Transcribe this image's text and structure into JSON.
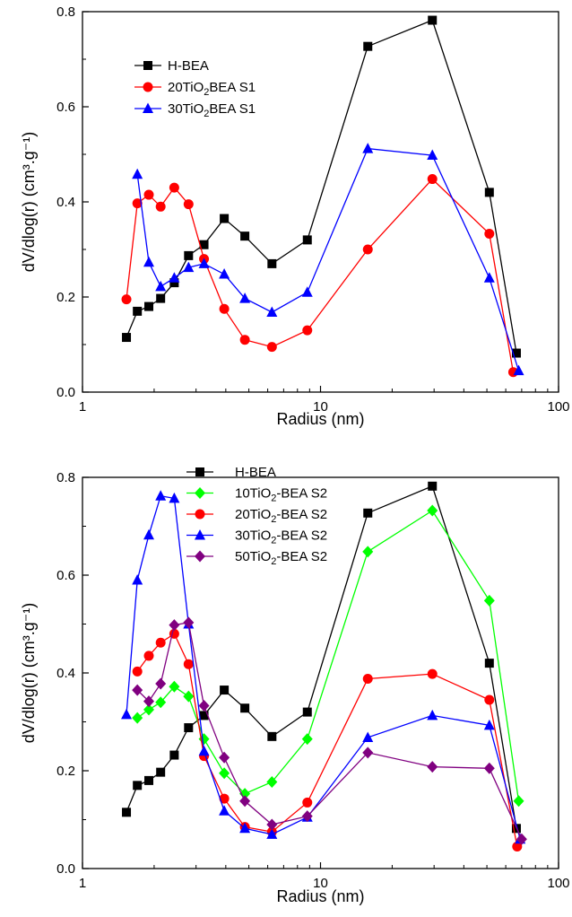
{
  "chart_data": [
    {
      "type": "line",
      "xscale": "log",
      "xlabel": "Radius (nm)",
      "ylabel": "dV/dlog(r) (cm³.g⁻¹)",
      "xlim": [
        1,
        100
      ],
      "ylim": [
        0,
        0.8
      ],
      "xticks": [
        1,
        10,
        100
      ],
      "xtick_labels": [
        "1",
        "10",
        "100"
      ],
      "yticks": [
        0.0,
        0.2,
        0.4,
        0.6,
        0.8
      ],
      "ytick_labels": [
        "0.0",
        "0.2",
        "0.4",
        "0.6",
        "0.8"
      ],
      "legend_position": "top-left",
      "series": [
        {
          "name": "H-BEA",
          "color": "#000000",
          "marker": "square",
          "x": [
            1.53,
            1.7,
            1.9,
            2.13,
            2.43,
            2.79,
            3.24,
            3.94,
            4.81,
            6.25,
            8.8,
            15.8,
            29.5,
            51.2,
            66.5
          ],
          "y": [
            0.115,
            0.17,
            0.18,
            0.197,
            0.23,
            0.287,
            0.31,
            0.365,
            0.328,
            0.27,
            0.32,
            0.727,
            0.782,
            0.42,
            0.082
          ]
        },
        {
          "name": "20TiO₂BEA S1",
          "color": "#ff0000",
          "marker": "circle",
          "x": [
            1.53,
            1.7,
            1.9,
            2.13,
            2.43,
            2.79,
            3.24,
            3.94,
            4.81,
            6.25,
            8.8,
            15.8,
            29.5,
            51.2,
            64.5
          ],
          "y": [
            0.195,
            0.397,
            0.415,
            0.39,
            0.43,
            0.395,
            0.28,
            0.175,
            0.11,
            0.095,
            0.13,
            0.3,
            0.448,
            0.333,
            0.042
          ]
        },
        {
          "name": "30TiO₂BEA S1",
          "color": "#0000ff",
          "marker": "triangle",
          "x": [
            1.7,
            1.9,
            2.13,
            2.43,
            2.79,
            3.24,
            3.94,
            4.81,
            6.25,
            8.8,
            15.8,
            29.5,
            51.2,
            68.0
          ],
          "y": [
            0.458,
            0.273,
            0.222,
            0.24,
            0.262,
            0.27,
            0.248,
            0.197,
            0.168,
            0.21,
            0.512,
            0.498,
            0.24,
            0.045
          ]
        }
      ]
    },
    {
      "type": "line",
      "xscale": "log",
      "xlabel": "Radius (nm)",
      "ylabel": "dV/dlog(r) (cm³.g⁻¹)",
      "xlim": [
        1,
        100
      ],
      "ylim": [
        0,
        0.8
      ],
      "xticks": [
        1,
        10,
        100
      ],
      "xtick_labels": [
        "1",
        "10",
        "100"
      ],
      "yticks": [
        0.0,
        0.2,
        0.4,
        0.6,
        0.8
      ],
      "ytick_labels": [
        "0.0",
        "0.2",
        "0.4",
        "0.6",
        "0.8"
      ],
      "legend_position": "top-left",
      "series": [
        {
          "name": "H-BEA",
          "color": "#000000",
          "marker": "square",
          "x": [
            1.53,
            1.7,
            1.9,
            2.13,
            2.43,
            2.79,
            3.24,
            3.94,
            4.81,
            6.25,
            8.8,
            15.8,
            29.5,
            51.2,
            66.5
          ],
          "y": [
            0.115,
            0.17,
            0.18,
            0.197,
            0.232,
            0.288,
            0.313,
            0.365,
            0.328,
            0.27,
            0.32,
            0.727,
            0.782,
            0.42,
            0.082
          ]
        },
        {
          "name": "10TiO₂-BEA S2",
          "color": "#00ff00",
          "marker": "diamond",
          "x": [
            1.7,
            1.9,
            2.13,
            2.43,
            2.79,
            3.24,
            3.94,
            4.81,
            6.25,
            8.8,
            15.8,
            29.5,
            51.2,
            68.0
          ],
          "y": [
            0.308,
            0.325,
            0.34,
            0.372,
            0.352,
            0.265,
            0.195,
            0.153,
            0.177,
            0.265,
            0.648,
            0.732,
            0.548,
            0.138
          ]
        },
        {
          "name": "20TiO₂-BEA S2",
          "color": "#ff0000",
          "marker": "circle",
          "x": [
            1.7,
            1.9,
            2.13,
            2.43,
            2.79,
            3.24,
            3.94,
            4.81,
            6.25,
            8.8,
            15.8,
            29.5,
            51.2,
            67.0
          ],
          "y": [
            0.403,
            0.435,
            0.462,
            0.48,
            0.418,
            0.23,
            0.143,
            0.085,
            0.075,
            0.135,
            0.388,
            0.398,
            0.345,
            0.045
          ]
        },
        {
          "name": "30TiO₂-BEA S2",
          "color": "#0000ff",
          "marker": "triangle",
          "x": [
            1.53,
            1.7,
            1.9,
            2.13,
            2.43,
            2.79,
            3.24,
            3.94,
            4.81,
            6.25,
            8.8,
            15.8,
            29.5,
            51.2,
            69.0
          ],
          "y": [
            0.315,
            0.59,
            0.682,
            0.762,
            0.757,
            0.5,
            0.24,
            0.118,
            0.082,
            0.07,
            0.105,
            0.268,
            0.313,
            0.293,
            0.06
          ]
        },
        {
          "name": "50TiO₂-BEA S2",
          "color": "#800080",
          "marker": "diamond",
          "x": [
            1.7,
            1.9,
            2.13,
            2.43,
            2.79,
            3.24,
            3.94,
            4.81,
            6.25,
            8.8,
            15.8,
            29.5,
            51.2,
            70.0
          ],
          "y": [
            0.365,
            0.342,
            0.378,
            0.498,
            0.503,
            0.333,
            0.227,
            0.138,
            0.09,
            0.107,
            0.237,
            0.208,
            0.205,
            0.06
          ]
        }
      ]
    }
  ]
}
